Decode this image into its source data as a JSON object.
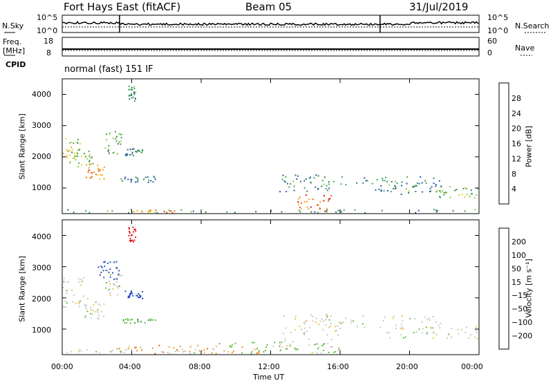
{
  "header": {
    "station": "Fort Hays East (fitACF)",
    "beam": "Beam 05",
    "date": "31/Jul/2019"
  },
  "noise_panel": {
    "left_label": "N.Sky",
    "right_label": "N.Search",
    "ticks_left": [
      "10^5",
      "10^0"
    ],
    "ticks_right": [
      "10^5",
      "10^0"
    ]
  },
  "freq_panel": {
    "left_label_1": "Freq.",
    "left_label_2": "[MHz]",
    "right_label": "Nave",
    "ticks_left": [
      "18",
      "8"
    ],
    "ticks_right": [
      "60",
      "0"
    ]
  },
  "cpid": {
    "label": "CPID",
    "mode": "normal (fast) 151 IF"
  },
  "colors": {
    "power_scale": [
      "#1a22e6",
      "#2a52b0",
      "#2f7a5a",
      "#3ea060",
      "#8ccc44",
      "#f0d020",
      "#f0a020",
      "#f06010",
      "#e41010"
    ],
    "velocity_scale": [
      "#e41010",
      "#f06010",
      "#f09020",
      "#f0c040",
      "#c8c8c0",
      "#c8c8c0",
      "#60c040",
      "#2f8a5a",
      "#2a52b0",
      "#1a22e6"
    ]
  },
  "chart_data": [
    {
      "type": "heatmap",
      "name": "power",
      "ylabel": "Slant Range [km]",
      "ylim": [
        180,
        4500
      ],
      "yticks": [
        "1000",
        "2000",
        "3000",
        "4000"
      ],
      "xlim": [
        "00:00",
        "24:00"
      ],
      "colorbar_label": "Power [dB]",
      "colorbar_ticks": [
        "4",
        "8",
        "12",
        "16",
        "20",
        "24",
        "28"
      ],
      "colorbar_range": [
        0,
        32
      ],
      "features": [
        {
          "t0": 0.0,
          "t1": 1.0,
          "r0": 1900,
          "r1": 2700,
          "level": 18
        },
        {
          "t0": 0.4,
          "t1": 1.8,
          "r0": 1700,
          "r1": 2200,
          "level": 14
        },
        {
          "t0": 1.2,
          "t1": 2.4,
          "r0": 1300,
          "r1": 1800,
          "level": 24
        },
        {
          "t0": 2.4,
          "t1": 3.4,
          "r0": 2100,
          "r1": 2900,
          "level": 14
        },
        {
          "t0": 3.6,
          "t1": 4.6,
          "r0": 2050,
          "r1": 2300,
          "level": 9
        },
        {
          "t0": 3.3,
          "t1": 5.4,
          "r0": 1200,
          "r1": 1400,
          "level": 8
        },
        {
          "t0": 3.8,
          "t1": 4.2,
          "r0": 3800,
          "r1": 4300,
          "level": 12
        },
        {
          "t0": 0.0,
          "t1": 24.0,
          "r0": 200,
          "r1": 330,
          "level": 10
        },
        {
          "t0": 4.0,
          "t1": 6.5,
          "r0": 200,
          "r1": 320,
          "level": 24
        },
        {
          "t0": 12.5,
          "t1": 15.5,
          "r0": 900,
          "r1": 1500,
          "level": 10
        },
        {
          "t0": 13.5,
          "t1": 15.5,
          "r0": 250,
          "r1": 800,
          "level": 26
        },
        {
          "t0": 14.5,
          "t1": 22.0,
          "r0": 1000,
          "r1": 1400,
          "level": 10
        },
        {
          "t0": 18.0,
          "t1": 22.0,
          "r0": 800,
          "r1": 1100,
          "level": 10
        },
        {
          "t0": 21.5,
          "t1": 24.0,
          "r0": 700,
          "r1": 1100,
          "level": 14
        }
      ]
    },
    {
      "type": "heatmap",
      "name": "velocity",
      "ylabel": "Slant Range [km]",
      "ylim": [
        180,
        4500
      ],
      "yticks": [
        "1000",
        "2000",
        "3000",
        "4000"
      ],
      "xlabel": "Time UT",
      "xticks": [
        "00:00",
        "04:00",
        "08:00",
        "12:00",
        "16:00",
        "20:00",
        "00:00"
      ],
      "colorbar_label": "Velocity [m s⁻¹]",
      "colorbar_ticks": [
        "200",
        "100",
        "50",
        "15",
        "−15",
        "−50",
        "−100",
        "−200"
      ],
      "features": [
        {
          "t0": 0.0,
          "t1": 1.2,
          "r0": 1700,
          "r1": 2700,
          "level": 0
        },
        {
          "t0": 1.2,
          "t1": 2.4,
          "r0": 1300,
          "r1": 2000,
          "level": 0
        },
        {
          "t0": 2.4,
          "t1": 3.4,
          "r0": 2100,
          "r1": 2900,
          "level": 0
        },
        {
          "t0": 3.6,
          "t1": 4.6,
          "r0": 2000,
          "r1": 2250,
          "level": 200
        },
        {
          "t0": 3.4,
          "t1": 5.4,
          "r0": 1200,
          "r1": 1350,
          "level": 40
        },
        {
          "t0": 3.8,
          "t1": 4.2,
          "r0": 3800,
          "r1": 4300,
          "level": -200
        },
        {
          "t0": 2.0,
          "t1": 3.3,
          "r0": 2600,
          "r1": 3200,
          "level": 120
        },
        {
          "t0": 0.0,
          "t1": 12.0,
          "r0": 200,
          "r1": 400,
          "level": 0
        },
        {
          "t0": 3.0,
          "t1": 12.5,
          "r0": 200,
          "r1": 500,
          "level": -45
        },
        {
          "t0": 12.5,
          "t1": 16.0,
          "r0": 250,
          "r1": 1500,
          "level": 0
        },
        {
          "t0": 14.5,
          "t1": 22.0,
          "r0": 1000,
          "r1": 1450,
          "level": 0
        },
        {
          "t0": 18.0,
          "t1": 24.0,
          "r0": 700,
          "r1": 1100,
          "level": 0
        },
        {
          "t0": 9.0,
          "t1": 16.0,
          "r0": 200,
          "r1": 600,
          "level": 30
        }
      ]
    }
  ]
}
